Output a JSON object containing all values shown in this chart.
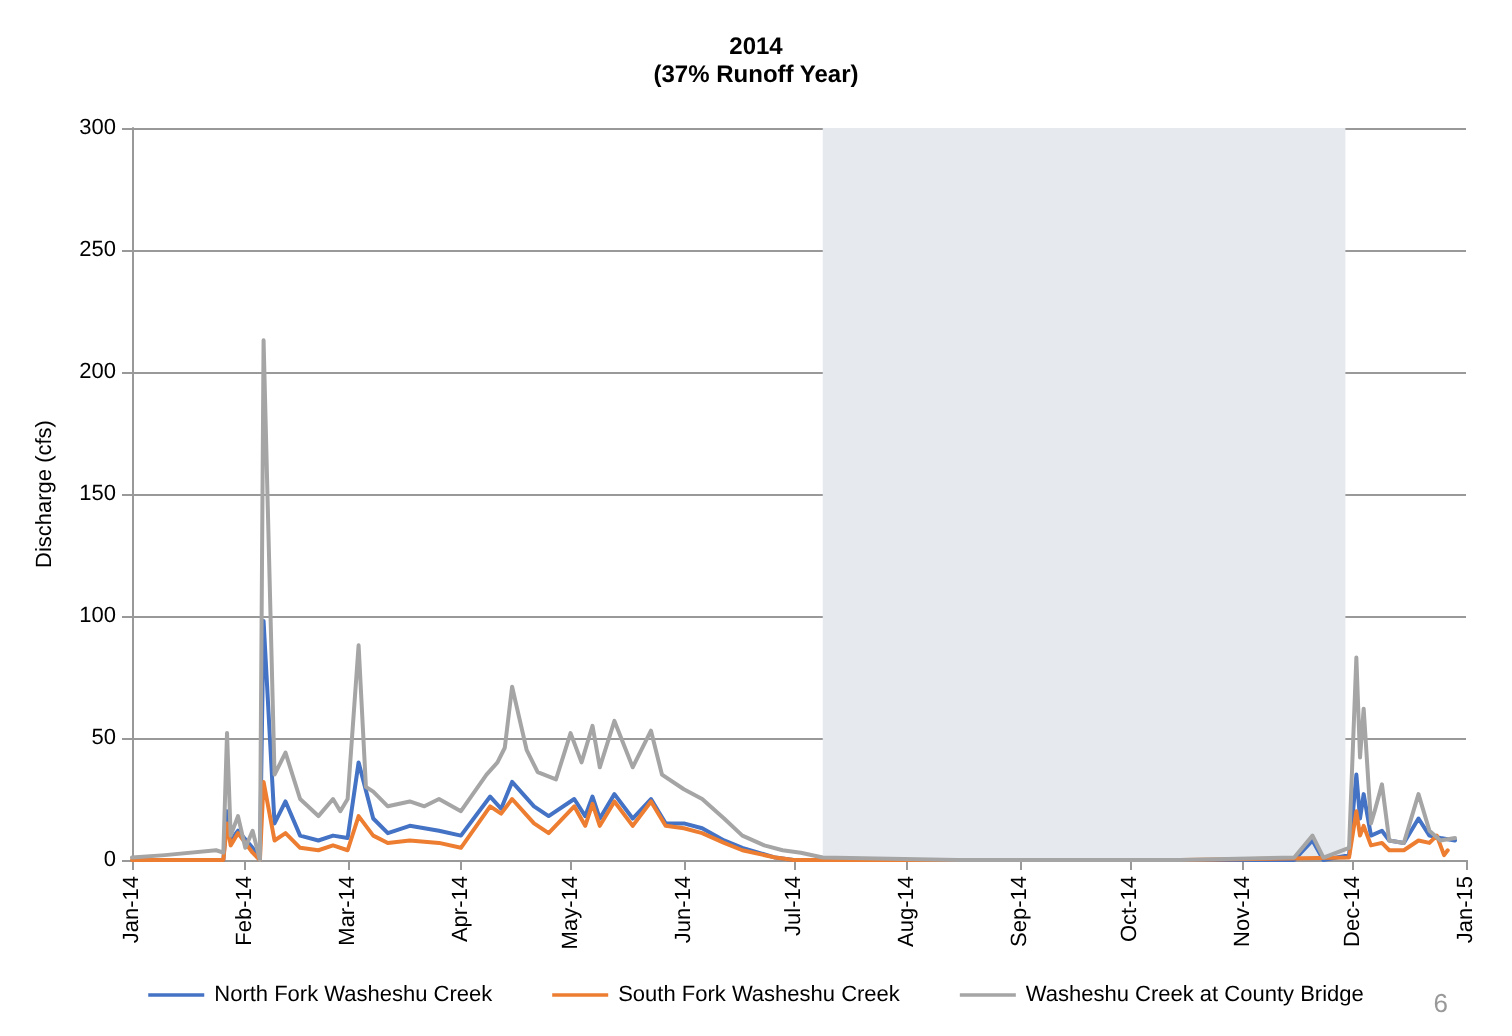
{
  "chart_data": {
    "type": "line",
    "title": "2014",
    "subtitle": "(37% Runoff Year)",
    "ylabel": "Discharge (cfs)",
    "xlim": [
      "2014-01-01",
      "2015-01-01"
    ],
    "xticks": [
      {
        "value": "2014-01-01",
        "label": "Jan-14"
      },
      {
        "value": "2014-02-01",
        "label": "Feb-14"
      },
      {
        "value": "2014-03-01",
        "label": "Mar-14"
      },
      {
        "value": "2014-04-01",
        "label": "Apr-14"
      },
      {
        "value": "2014-05-01",
        "label": "May-14"
      },
      {
        "value": "2014-06-01",
        "label": "Jun-14"
      },
      {
        "value": "2014-07-01",
        "label": "Jul-14"
      },
      {
        "value": "2014-08-01",
        "label": "Aug-14"
      },
      {
        "value": "2014-09-01",
        "label": "Sep-14"
      },
      {
        "value": "2014-10-01",
        "label": "Oct-14"
      },
      {
        "value": "2014-11-01",
        "label": "Nov-14"
      },
      {
        "value": "2014-12-01",
        "label": "Dec-14"
      },
      {
        "value": "2015-01-01",
        "label": "Jan-15"
      }
    ],
    "ylim": [
      0,
      300
    ],
    "yticks": [
      0,
      50,
      100,
      150,
      200,
      250,
      300
    ],
    "grid": "y",
    "legend": "bottom",
    "marker": "none",
    "line_style": "solid",
    "bands": [
      {
        "axis": "x",
        "from": "2014-07-09",
        "to": "2014-11-29",
        "color": "#e6e9ee"
      }
    ],
    "annotations": [
      "6"
    ],
    "series": [
      {
        "name": "North Fork Washeshu Creek",
        "color": "#4472c4",
        "x": [
          "2014-01-26",
          "2014-01-27",
          "2014-01-28",
          "2014-01-30",
          "2014-02-03",
          "2014-02-05",
          "2014-02-06",
          "2014-02-09",
          "2014-02-12",
          "2014-02-16",
          "2014-02-21",
          "2014-02-25",
          "2014-03-01",
          "2014-03-04",
          "2014-03-08",
          "2014-03-12",
          "2014-03-18",
          "2014-03-26",
          "2014-04-01",
          "2014-04-09",
          "2014-04-12",
          "2014-04-15",
          "2014-04-21",
          "2014-04-25",
          "2014-05-02",
          "2014-05-05",
          "2014-05-07",
          "2014-05-09",
          "2014-05-13",
          "2014-05-18",
          "2014-05-23",
          "2014-05-27",
          "2014-06-01",
          "2014-06-06",
          "2014-06-12",
          "2014-06-17",
          "2014-06-26",
          "2014-07-01",
          "2014-08-15",
          "2014-10-15",
          "2014-11-15",
          "2014-11-20",
          "2014-11-23",
          "2014-11-30",
          "2014-12-02",
          "2014-12-03",
          "2014-12-04",
          "2014-12-06",
          "2014-12-09",
          "2014-12-11",
          "2014-12-15",
          "2014-12-19",
          "2014-12-22",
          "2014-12-25",
          "2014-12-29"
        ],
        "values": [
          0,
          20,
          8,
          12,
          5,
          0,
          98,
          15,
          24,
          10,
          8,
          10,
          9,
          40,
          17,
          11,
          14,
          12,
          10,
          26,
          21,
          32,
          22,
          18,
          25,
          18,
          26,
          17,
          27,
          17,
          25,
          15,
          15,
          13,
          8,
          5,
          1,
          0,
          0,
          0,
          0,
          8,
          0,
          2,
          35,
          17,
          27,
          10,
          12,
          8,
          7,
          17,
          10,
          9,
          8
        ]
      },
      {
        "name": "South Fork Washeshu Creek",
        "color": "#ed7d31",
        "x": [
          "2014-01-01",
          "2014-01-20",
          "2014-01-26",
          "2014-01-27",
          "2014-01-28",
          "2014-01-30",
          "2014-02-03",
          "2014-02-05",
          "2014-02-06",
          "2014-02-09",
          "2014-02-12",
          "2014-02-16",
          "2014-02-21",
          "2014-02-25",
          "2014-03-01",
          "2014-03-04",
          "2014-03-08",
          "2014-03-12",
          "2014-03-18",
          "2014-03-26",
          "2014-04-01",
          "2014-04-09",
          "2014-04-12",
          "2014-04-15",
          "2014-04-21",
          "2014-04-25",
          "2014-05-02",
          "2014-05-05",
          "2014-05-07",
          "2014-05-09",
          "2014-05-13",
          "2014-05-18",
          "2014-05-23",
          "2014-05-27",
          "2014-06-01",
          "2014-06-06",
          "2014-06-12",
          "2014-06-17",
          "2014-06-26",
          "2014-07-01",
          "2014-08-15",
          "2014-10-15",
          "2014-11-30",
          "2014-12-02",
          "2014-12-03",
          "2014-12-04",
          "2014-12-06",
          "2014-12-09",
          "2014-12-11",
          "2014-12-15",
          "2014-12-19",
          "2014-12-22",
          "2014-12-24",
          "2014-12-26",
          "2014-12-27"
        ],
        "values": [
          0,
          0,
          0,
          15,
          6,
          11,
          3,
          0,
          32,
          8,
          11,
          5,
          4,
          6,
          4,
          18,
          10,
          7,
          8,
          7,
          5,
          22,
          19,
          25,
          15,
          11,
          22,
          14,
          23,
          14,
          24,
          14,
          24,
          14,
          13,
          11,
          7,
          4,
          1,
          0,
          0,
          0,
          1,
          20,
          10,
          14,
          6,
          7,
          4,
          4,
          8,
          7,
          10,
          2,
          4
        ]
      },
      {
        "name": "Washeshu Creek at County Bridge",
        "color": "#a5a5a5",
        "x": [
          "2014-01-01",
          "2014-01-10",
          "2014-01-24",
          "2014-01-26",
          "2014-01-27",
          "2014-01-28",
          "2014-01-30",
          "2014-02-01",
          "2014-02-03",
          "2014-02-05",
          "2014-02-06",
          "2014-02-09",
          "2014-02-12",
          "2014-02-16",
          "2014-02-21",
          "2014-02-25",
          "2014-02-27",
          "2014-03-01",
          "2014-03-04",
          "2014-03-06",
          "2014-03-08",
          "2014-03-12",
          "2014-03-18",
          "2014-03-22",
          "2014-03-26",
          "2014-04-01",
          "2014-04-08",
          "2014-04-11",
          "2014-04-13",
          "2014-04-15",
          "2014-04-19",
          "2014-04-22",
          "2014-04-27",
          "2014-05-01",
          "2014-05-04",
          "2014-05-07",
          "2014-05-09",
          "2014-05-13",
          "2014-05-18",
          "2014-05-23",
          "2014-05-26",
          "2014-06-01",
          "2014-06-06",
          "2014-06-12",
          "2014-06-17",
          "2014-06-23",
          "2014-06-28",
          "2014-07-03",
          "2014-07-09",
          "2014-08-15",
          "2014-10-15",
          "2014-11-15",
          "2014-11-20",
          "2014-11-23",
          "2014-11-30",
          "2014-12-02",
          "2014-12-03",
          "2014-12-04",
          "2014-12-06",
          "2014-12-07",
          "2014-12-09",
          "2014-12-11",
          "2014-12-15",
          "2014-12-19",
          "2014-12-22",
          "2014-12-25",
          "2014-12-29"
        ],
        "values": [
          1,
          2,
          4,
          3,
          52,
          10,
          18,
          5,
          12,
          0,
          213,
          35,
          44,
          25,
          18,
          25,
          20,
          25,
          88,
          30,
          28,
          22,
          24,
          22,
          25,
          20,
          35,
          40,
          46,
          71,
          45,
          36,
          33,
          52,
          40,
          55,
          38,
          57,
          38,
          53,
          35,
          29,
          25,
          17,
          10,
          6,
          4,
          3,
          1,
          0,
          0,
          1,
          10,
          1,
          5,
          83,
          42,
          62,
          15,
          20,
          31,
          8,
          7,
          27,
          12,
          8,
          9
        ]
      }
    ]
  }
}
